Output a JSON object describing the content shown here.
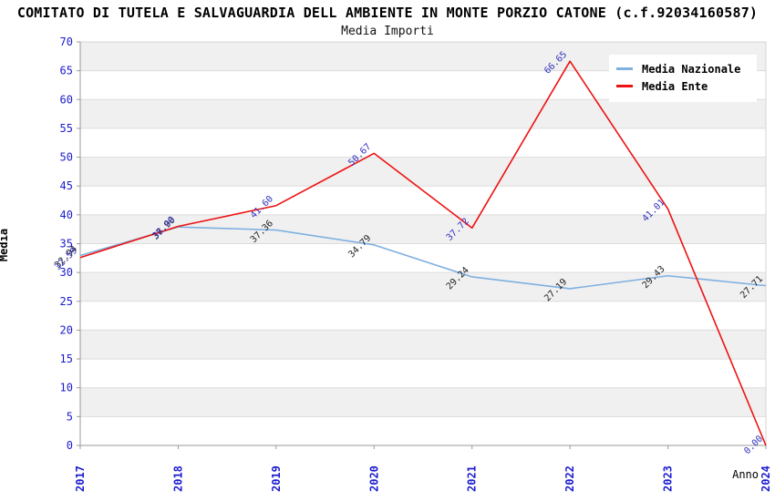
{
  "chart": {
    "title": "COMITATO DI TUTELA E SALVAGUARDIA DELL AMBIENTE IN MONTE PORZIO CATONE (c.f.92034160587)",
    "subtitle": "Media Importi",
    "y_axis_title": "Media",
    "x_axis_title": "Anno",
    "legend": [
      {
        "label": "Media Nazionale",
        "color": "#7EB0E0"
      },
      {
        "label": "Media Ente",
        "color": "#EE1111"
      }
    ]
  },
  "chart_data": {
    "type": "line",
    "x": [
      "2017",
      "2018",
      "2019",
      "2020",
      "2021",
      "2022",
      "2023",
      "2024"
    ],
    "series": [
      {
        "name": "Media Nazionale",
        "color": "#7EB0E0",
        "label_color": "#222222",
        "values": [
          32.94,
          37.9,
          37.36,
          34.79,
          29.24,
          27.19,
          29.43,
          27.71
        ]
      },
      {
        "name": "Media Ente",
        "color": "#EE1111",
        "label_color": "#3232BE",
        "values": [
          32.59,
          38.0,
          41.6,
          50.67,
          37.72,
          66.65,
          41.01,
          0.0
        ]
      }
    ],
    "ylim": [
      0,
      70
    ],
    "y_tick_step": 5,
    "grid": true,
    "legend_position": "top-right",
    "band_colors": [
      "#f0f0f0",
      "#ffffff"
    ],
    "tick_label_color": "#1b1bd0",
    "axis_line_color": "#999999",
    "plot_border_color": "#d5d5d5",
    "grid_line_color": "#dcdcdc"
  }
}
